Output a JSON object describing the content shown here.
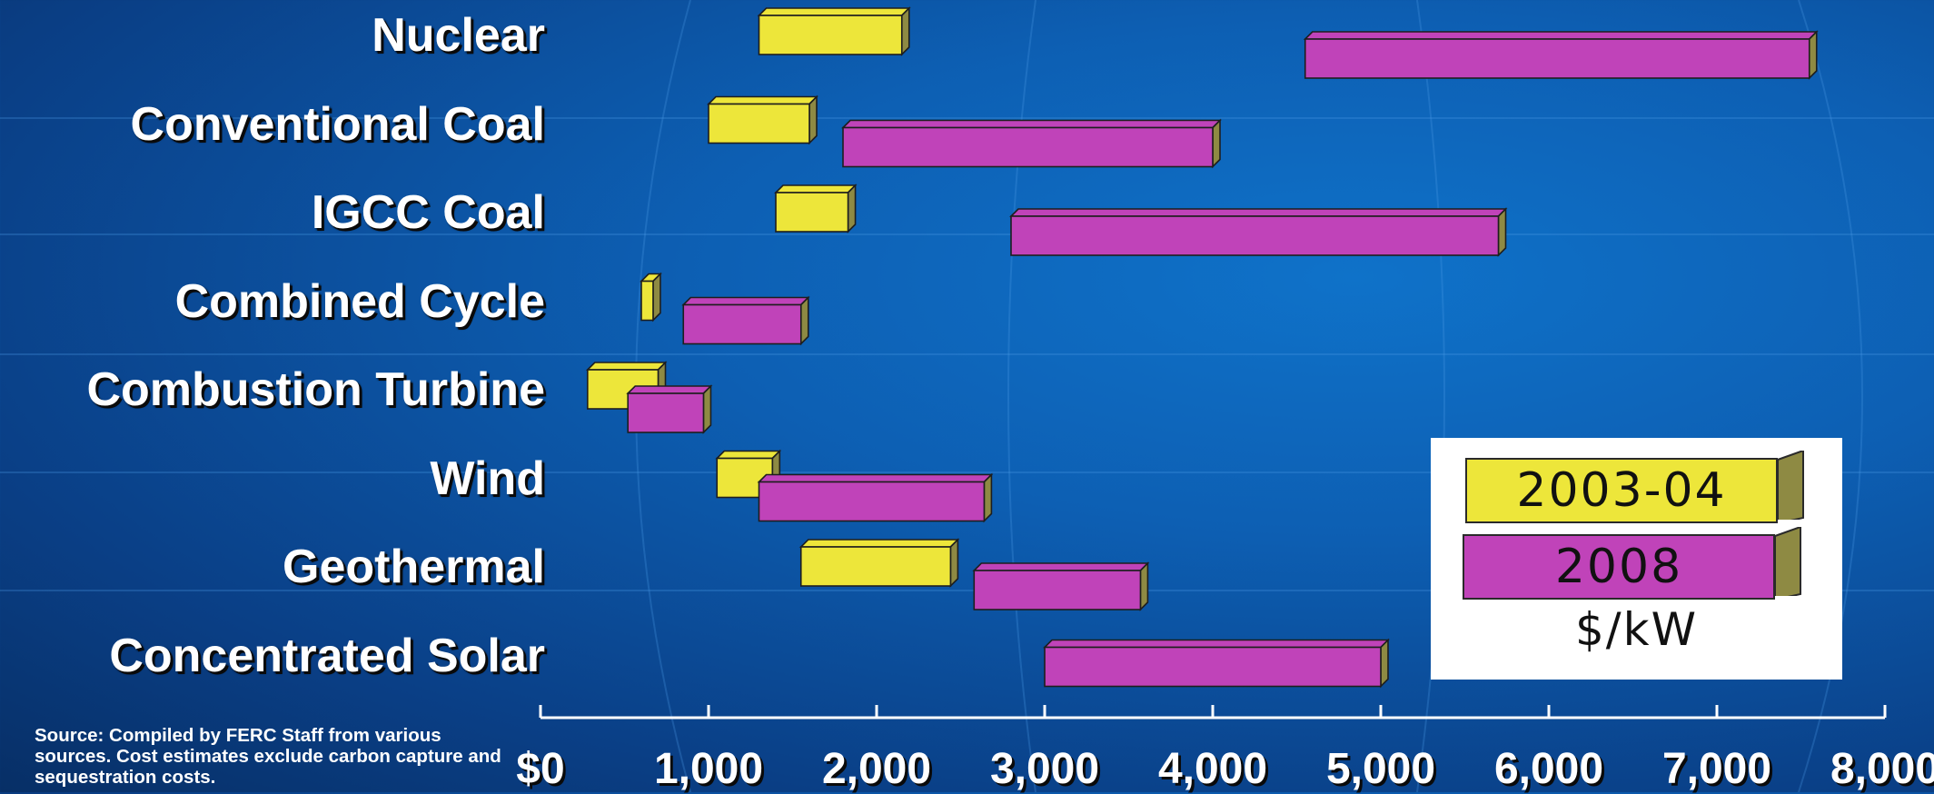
{
  "chart_data": {
    "type": "bar",
    "orientation": "horizontal",
    "style": "floating-range",
    "categories": [
      "Nuclear",
      "Conventional Coal",
      "IGCC Coal",
      "Combined Cycle",
      "Combustion Turbine",
      "Wind",
      "Geothermal",
      "Concentrated Solar"
    ],
    "series": [
      {
        "name": "2003-04",
        "color": "#ede63a",
        "ranges": [
          [
            1300,
            2150
          ],
          [
            1000,
            1600
          ],
          [
            1400,
            1830
          ],
          [
            600,
            670
          ],
          [
            280,
            700
          ],
          [
            1050,
            1380
          ],
          [
            1550,
            2440
          ],
          null
        ]
      },
      {
        "name": "2008",
        "color": "#c043b9",
        "ranges": [
          [
            4550,
            7550
          ],
          [
            1800,
            4000
          ],
          [
            2800,
            5700
          ],
          [
            850,
            1550
          ],
          [
            520,
            970
          ],
          [
            1300,
            2640
          ],
          [
            2580,
            3570
          ],
          [
            3000,
            5000
          ]
        ]
      }
    ],
    "x_ticks": [
      "$0",
      "1,000",
      "2,000",
      "3,000",
      "4,000",
      "5,000",
      "6,000",
      "7,000",
      "8,000"
    ],
    "xlim": [
      0,
      8000
    ],
    "legend": {
      "entries": [
        "2003-04",
        "2008"
      ],
      "unit": "$/kW",
      "position": "bottom-right"
    },
    "source_note": "Source: Compiled by FERC Staff from various sources. Cost estimates exclude carbon capture and sequestration costs."
  }
}
